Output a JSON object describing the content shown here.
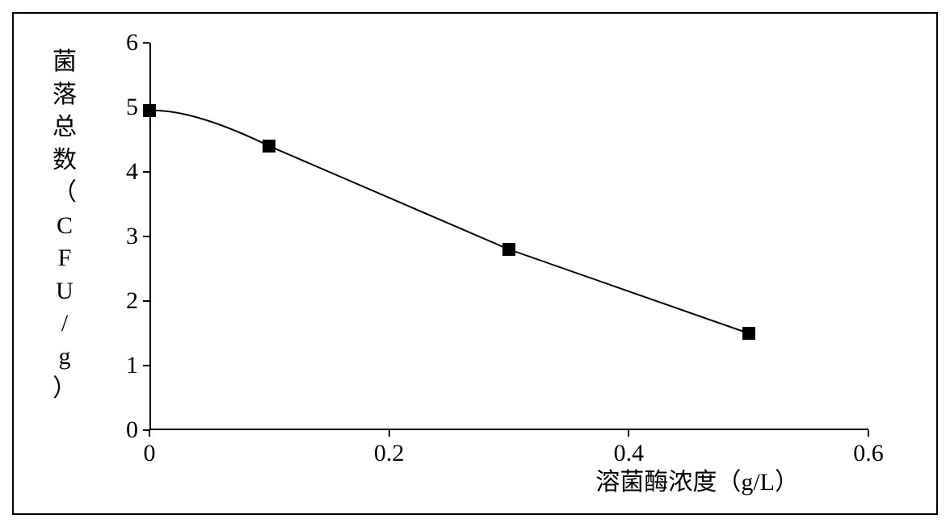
{
  "chart": {
    "type": "line",
    "x_values": [
      0,
      0.1,
      0.3,
      0.5
    ],
    "y_values": [
      4.95,
      4.4,
      2.8,
      1.5
    ],
    "line_color": "#000000",
    "line_width": 2,
    "marker_style": "square",
    "marker_size": 16,
    "marker_color": "#000000",
    "background_color": "#ffffff",
    "border_color": "#000000",
    "xlim": [
      0,
      0.6
    ],
    "ylim": [
      0,
      6
    ],
    "xtick_values": [
      0,
      0.2,
      0.4,
      0.6
    ],
    "xtick_labels": [
      "0",
      "0.2",
      "0.4",
      "0.6"
    ],
    "ytick_values": [
      0,
      1,
      2,
      3,
      4,
      5,
      6
    ],
    "ytick_labels": [
      "0",
      "1",
      "2",
      "3",
      "4",
      "5",
      "6"
    ],
    "xlabel": "溶菌酶浓度（g/L）",
    "ylabel_chars": [
      "菌",
      "落",
      "总",
      "数",
      "（",
      "C",
      "F",
      "U",
      "/",
      "g",
      "）"
    ],
    "label_fontsize": 30,
    "tick_fontsize": 30,
    "axis_color": "#000000"
  }
}
